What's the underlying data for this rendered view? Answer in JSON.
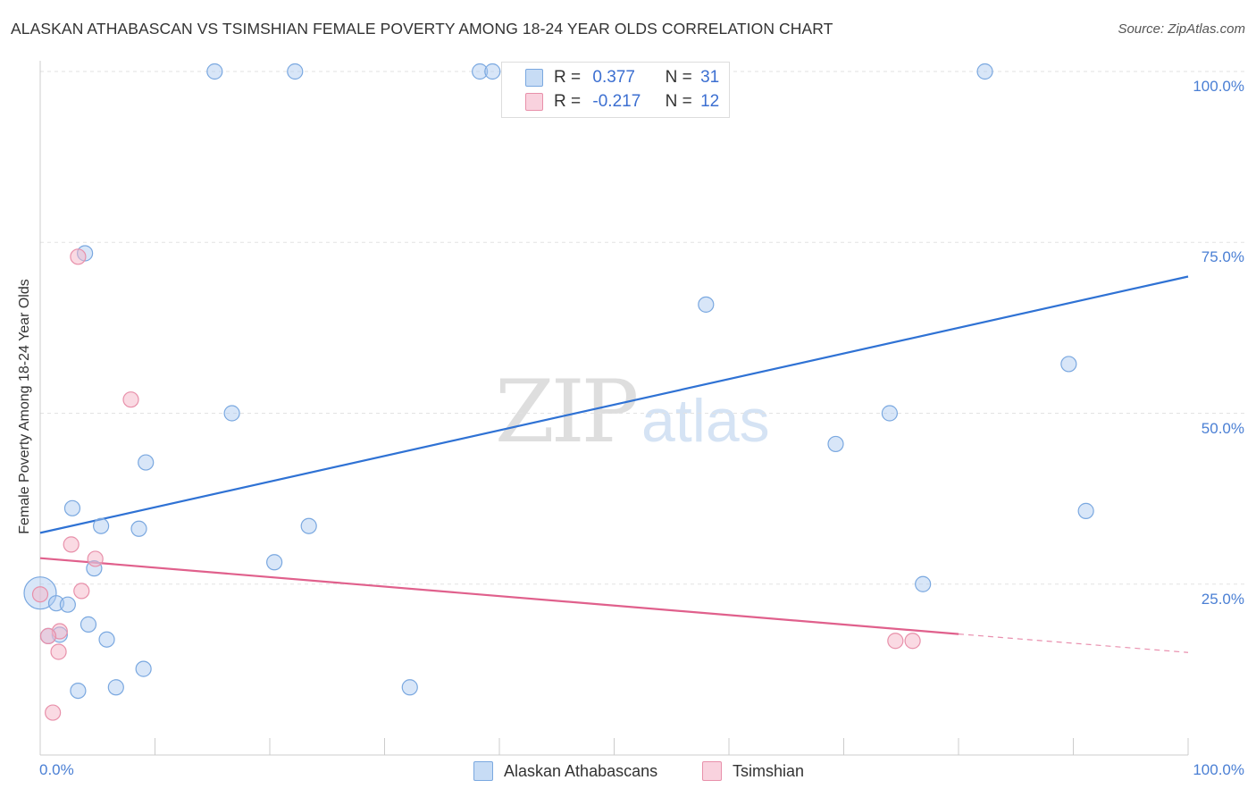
{
  "header": {
    "title": "ALASKAN ATHABASCAN VS TSIMSHIAN FEMALE POVERTY AMONG 18-24 YEAR OLDS CORRELATION CHART",
    "source": "Source: ZipAtlas.com"
  },
  "watermark": {
    "zip": "ZIP",
    "atlas": "atlas"
  },
  "legend_top": {
    "rows": [
      {
        "r_label": "R =",
        "r_value": "0.377",
        "n_label": "N =",
        "n_value": "31",
        "color": "#a8c8f0"
      },
      {
        "r_label": "R =",
        "r_value": "-0.217",
        "n_label": "N =",
        "n_value": "12",
        "color": "#f5b6c8"
      }
    ]
  },
  "legend_bottom": {
    "items": [
      {
        "label": "Alaskan Athabascans",
        "color": "#a8c8f0"
      },
      {
        "label": "Tsimshian",
        "color": "#f5b6c8"
      }
    ]
  },
  "colors": {
    "blue_fill": "#a8c8f0",
    "blue_stroke": "#7aa8e0",
    "blue_line": "#2f72d4",
    "pink_fill": "#f5b6c8",
    "pink_stroke": "#e890aa",
    "pink_line": "#e0608c",
    "grid": "#e2e2e2",
    "tick_label": "#4a7fd4"
  },
  "chart_data": {
    "type": "scatter",
    "title": "ALASKAN ATHABASCAN VS TSIMSHIAN FEMALE POVERTY AMONG 18-24 YEAR OLDS CORRELATION CHART",
    "xlabel": "",
    "ylabel": "Female Poverty Among 18-24 Year Olds",
    "xlim": [
      0,
      100
    ],
    "ylim": [
      0,
      100
    ],
    "x_tick_labels": [
      "0.0%",
      "100.0%"
    ],
    "y_ticks": [
      25,
      50,
      75,
      100
    ],
    "y_tick_labels": [
      "25.0%",
      "50.0%",
      "75.0%",
      "100.0%"
    ],
    "grid": true,
    "legend_placement": "top-center",
    "series": [
      {
        "name": "Alaskan Athabascans",
        "color": "#a8c8f0",
        "points": [
          [
            15.2,
            100
          ],
          [
            22.2,
            100
          ],
          [
            38.3,
            100
          ],
          [
            39.4,
            100
          ],
          [
            82.3,
            100
          ],
          [
            3.9,
            73.4
          ],
          [
            58.0,
            65.9
          ],
          [
            89.6,
            57.2
          ],
          [
            16.7,
            50.0
          ],
          [
            74.0,
            50.0
          ],
          [
            69.3,
            45.5
          ],
          [
            9.2,
            42.8
          ],
          [
            2.8,
            36.1
          ],
          [
            91.1,
            35.7
          ],
          [
            5.3,
            33.5
          ],
          [
            8.6,
            33.1
          ],
          [
            23.4,
            33.5
          ],
          [
            20.4,
            28.2
          ],
          [
            4.7,
            27.3
          ],
          [
            76.9,
            25.0
          ],
          [
            0.0,
            23.7
          ],
          [
            1.4,
            22.2
          ],
          [
            2.4,
            22.0
          ],
          [
            4.2,
            19.1
          ],
          [
            1.7,
            17.6
          ],
          [
            0.7,
            17.4
          ],
          [
            5.8,
            16.9
          ],
          [
            9.0,
            12.6
          ],
          [
            3.3,
            9.4
          ],
          [
            6.6,
            9.9
          ],
          [
            32.2,
            9.9
          ]
        ],
        "trend": {
          "x": [
            0,
            100
          ],
          "y": [
            32.5,
            70.0
          ]
        }
      },
      {
        "name": "Tsimshian",
        "color": "#f5b6c8",
        "points": [
          [
            3.3,
            72.9
          ],
          [
            7.9,
            52.0
          ],
          [
            2.7,
            30.8
          ],
          [
            4.8,
            28.7
          ],
          [
            3.6,
            24.0
          ],
          [
            0.0,
            23.5
          ],
          [
            1.7,
            18.1
          ],
          [
            0.7,
            17.4
          ],
          [
            1.6,
            15.1
          ],
          [
            74.5,
            16.7
          ],
          [
            76.0,
            16.7
          ],
          [
            1.1,
            6.2
          ]
        ],
        "trend": {
          "x": [
            0,
            80
          ],
          "y": [
            28.8,
            17.7
          ],
          "dashed_to": [
            100,
            15.0
          ]
        }
      }
    ]
  }
}
